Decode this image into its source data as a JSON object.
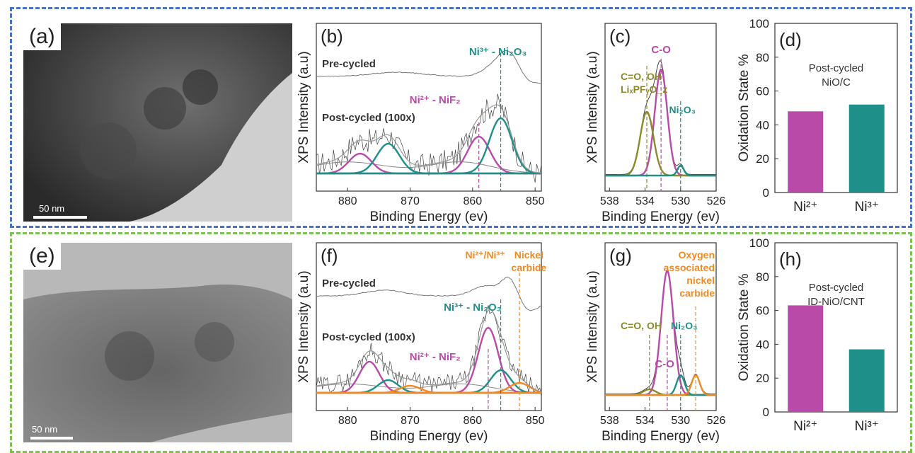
{
  "colors": {
    "top_dash": "#4a72c4",
    "bottom_dash": "#7cc24e",
    "magenta": "#b94aa8",
    "teal": "#1f8f8a",
    "olive": "#8a8a2a",
    "orange": "#f08a24",
    "gray": "#666666"
  },
  "panels": {
    "a": {
      "label": "(a)",
      "scale": "50 nm"
    },
    "e": {
      "label": "(e)",
      "scale": "50 nm"
    }
  },
  "chart_data": [
    {
      "id": "b",
      "type": "line",
      "panel_label": "(b)",
      "xlabel": "Binding Energy (ev)",
      "ylabel": "XPS Intensity (a.u)",
      "x_reversed": true,
      "xlim": [
        885,
        849
      ],
      "xticks": [
        880,
        870,
        860,
        850
      ],
      "traces": {
        "pre": "Pre-cycled",
        "post": "Post-cycled (100x)"
      },
      "peaks": [
        {
          "name": "Ni²⁺ - NiF₂",
          "series": "magenta",
          "centers": [
            878,
            859
          ]
        },
        {
          "name": "Ni³⁺ - Ni₂O₃",
          "series": "teal",
          "centers": [
            873.5,
            855.5
          ]
        }
      ],
      "annotations": [
        "Ni³⁺ - Ni₂O₃",
        "Ni²⁺ - NiF₂"
      ]
    },
    {
      "id": "c",
      "type": "line",
      "panel_label": "(c)",
      "xlabel": "Binding Energy (ev)",
      "ylabel": "XPS Intensity (a.u)",
      "x_reversed": true,
      "xlim": [
        538.5,
        526
      ],
      "xticks": [
        538,
        534,
        530,
        526
      ],
      "peaks": [
        {
          "name": "C-O",
          "series": "magenta",
          "center": 532.2
        },
        {
          "name": "C=O, OH",
          "series": "olive",
          "center": 533.8
        },
        {
          "name": "Ni₂O₃",
          "series": "teal",
          "center": 530
        }
      ],
      "annotations": [
        "C-O",
        "C=O, OH",
        "LiₓPFᵧO_z",
        "Ni₂O₃"
      ]
    },
    {
      "id": "d",
      "type": "bar",
      "panel_label": "(d)",
      "ylabel": "Oxidation State %",
      "ylim": [
        0,
        100
      ],
      "yticks": [
        0,
        20,
        40,
        60,
        80,
        100
      ],
      "categories": [
        "Ni²⁺",
        "Ni³⁺"
      ],
      "values": [
        48,
        52
      ],
      "annotation": [
        "Post-cycled",
        "NiO/C"
      ]
    },
    {
      "id": "f",
      "type": "line",
      "panel_label": "(f)",
      "xlabel": "Binding Energy (ev)",
      "ylabel": "XPS Intensity (a.u)",
      "x_reversed": true,
      "xlim": [
        885,
        849
      ],
      "xticks": [
        880,
        870,
        860,
        850
      ],
      "traces": {
        "pre": "Pre-cycled",
        "post": "Post-cycled (100x)"
      },
      "peaks": [
        {
          "name": "Ni²⁺ - NiF₂",
          "series": "magenta",
          "centers": [
            876.5,
            857.5
          ]
        },
        {
          "name": "Ni³⁺ - Ni₂O₃",
          "series": "teal",
          "centers": [
            873.5,
            855.5
          ]
        },
        {
          "name": "Nickel carbide",
          "series": "orange",
          "centers": [
            870,
            852.5
          ]
        }
      ],
      "annotations": [
        "Ni²⁺/Ni³⁺",
        "Nickel",
        "carbide",
        "Ni³⁺ - Ni₂O₃",
        "Ni²⁺ - NiF₂"
      ]
    },
    {
      "id": "g",
      "type": "line",
      "panel_label": "(g)",
      "xlabel": "Binding Energy (ev)",
      "ylabel": "XPS Intensity (a.u)",
      "x_reversed": true,
      "xlim": [
        538.5,
        526
      ],
      "xticks": [
        538,
        534,
        530,
        526
      ],
      "peaks": [
        {
          "name": "C-O",
          "series": "magenta",
          "center": 531.5
        },
        {
          "name": "C=O, OH",
          "series": "olive",
          "center": 533.5
        },
        {
          "name": "Ni₂O₃",
          "series": "teal",
          "center": 530
        },
        {
          "name": "Oxygen associated nickel carbide",
          "series": "orange",
          "center": 528.3
        }
      ],
      "annotations": [
        "Oxygen",
        "associated",
        "nickel",
        "carbide",
        "C=O, OH",
        "Ni₂O₃",
        "C-O"
      ]
    },
    {
      "id": "h",
      "type": "bar",
      "panel_label": "(h)",
      "ylabel": "Oxidation State %",
      "ylim": [
        0,
        100
      ],
      "yticks": [
        0,
        20,
        40,
        60,
        80,
        100
      ],
      "categories": [
        "Ni²⁺",
        "Ni³⁺"
      ],
      "values": [
        63,
        37
      ],
      "annotation": [
        "Post-cycled",
        "ID-NiO/CNT"
      ]
    }
  ]
}
